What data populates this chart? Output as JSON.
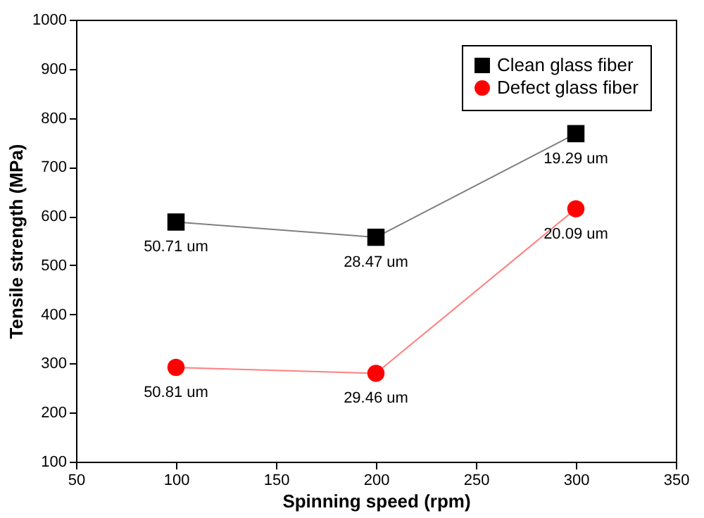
{
  "chart_data": {
    "type": "line",
    "xlabel": "Spinning speed (rpm)",
    "ylabel": "Tensile strength (MPa)",
    "x": [
      100,
      200,
      300
    ],
    "series": [
      {
        "name": "Clean glass fiber",
        "color": "#000000",
        "marker": "square",
        "values": [
          588,
          557,
          768
        ]
      },
      {
        "name": "Defect glass fiber",
        "color": "#ff0000",
        "marker": "circle",
        "values": [
          292,
          280,
          615
        ]
      }
    ],
    "annotations": [
      {
        "text": "50.71 um",
        "x": 100,
        "y": 588
      },
      {
        "text": "28.47 um",
        "x": 200,
        "y": 557
      },
      {
        "text": "19.29 um",
        "x": 300,
        "y": 768
      },
      {
        "text": "50.81 um",
        "x": 100,
        "y": 292
      },
      {
        "text": "29.46 um",
        "x": 200,
        "y": 280
      },
      {
        "text": "20.09 um",
        "x": 300,
        "y": 615
      }
    ],
    "xlim": [
      50,
      350
    ],
    "xticks": [
      50,
      100,
      150,
      200,
      250,
      300,
      350
    ],
    "ylim": [
      100,
      1000
    ],
    "yticks": [
      100,
      200,
      300,
      400,
      500,
      600,
      700,
      800,
      900,
      1000
    ],
    "grid": false,
    "legend": "top right"
  }
}
